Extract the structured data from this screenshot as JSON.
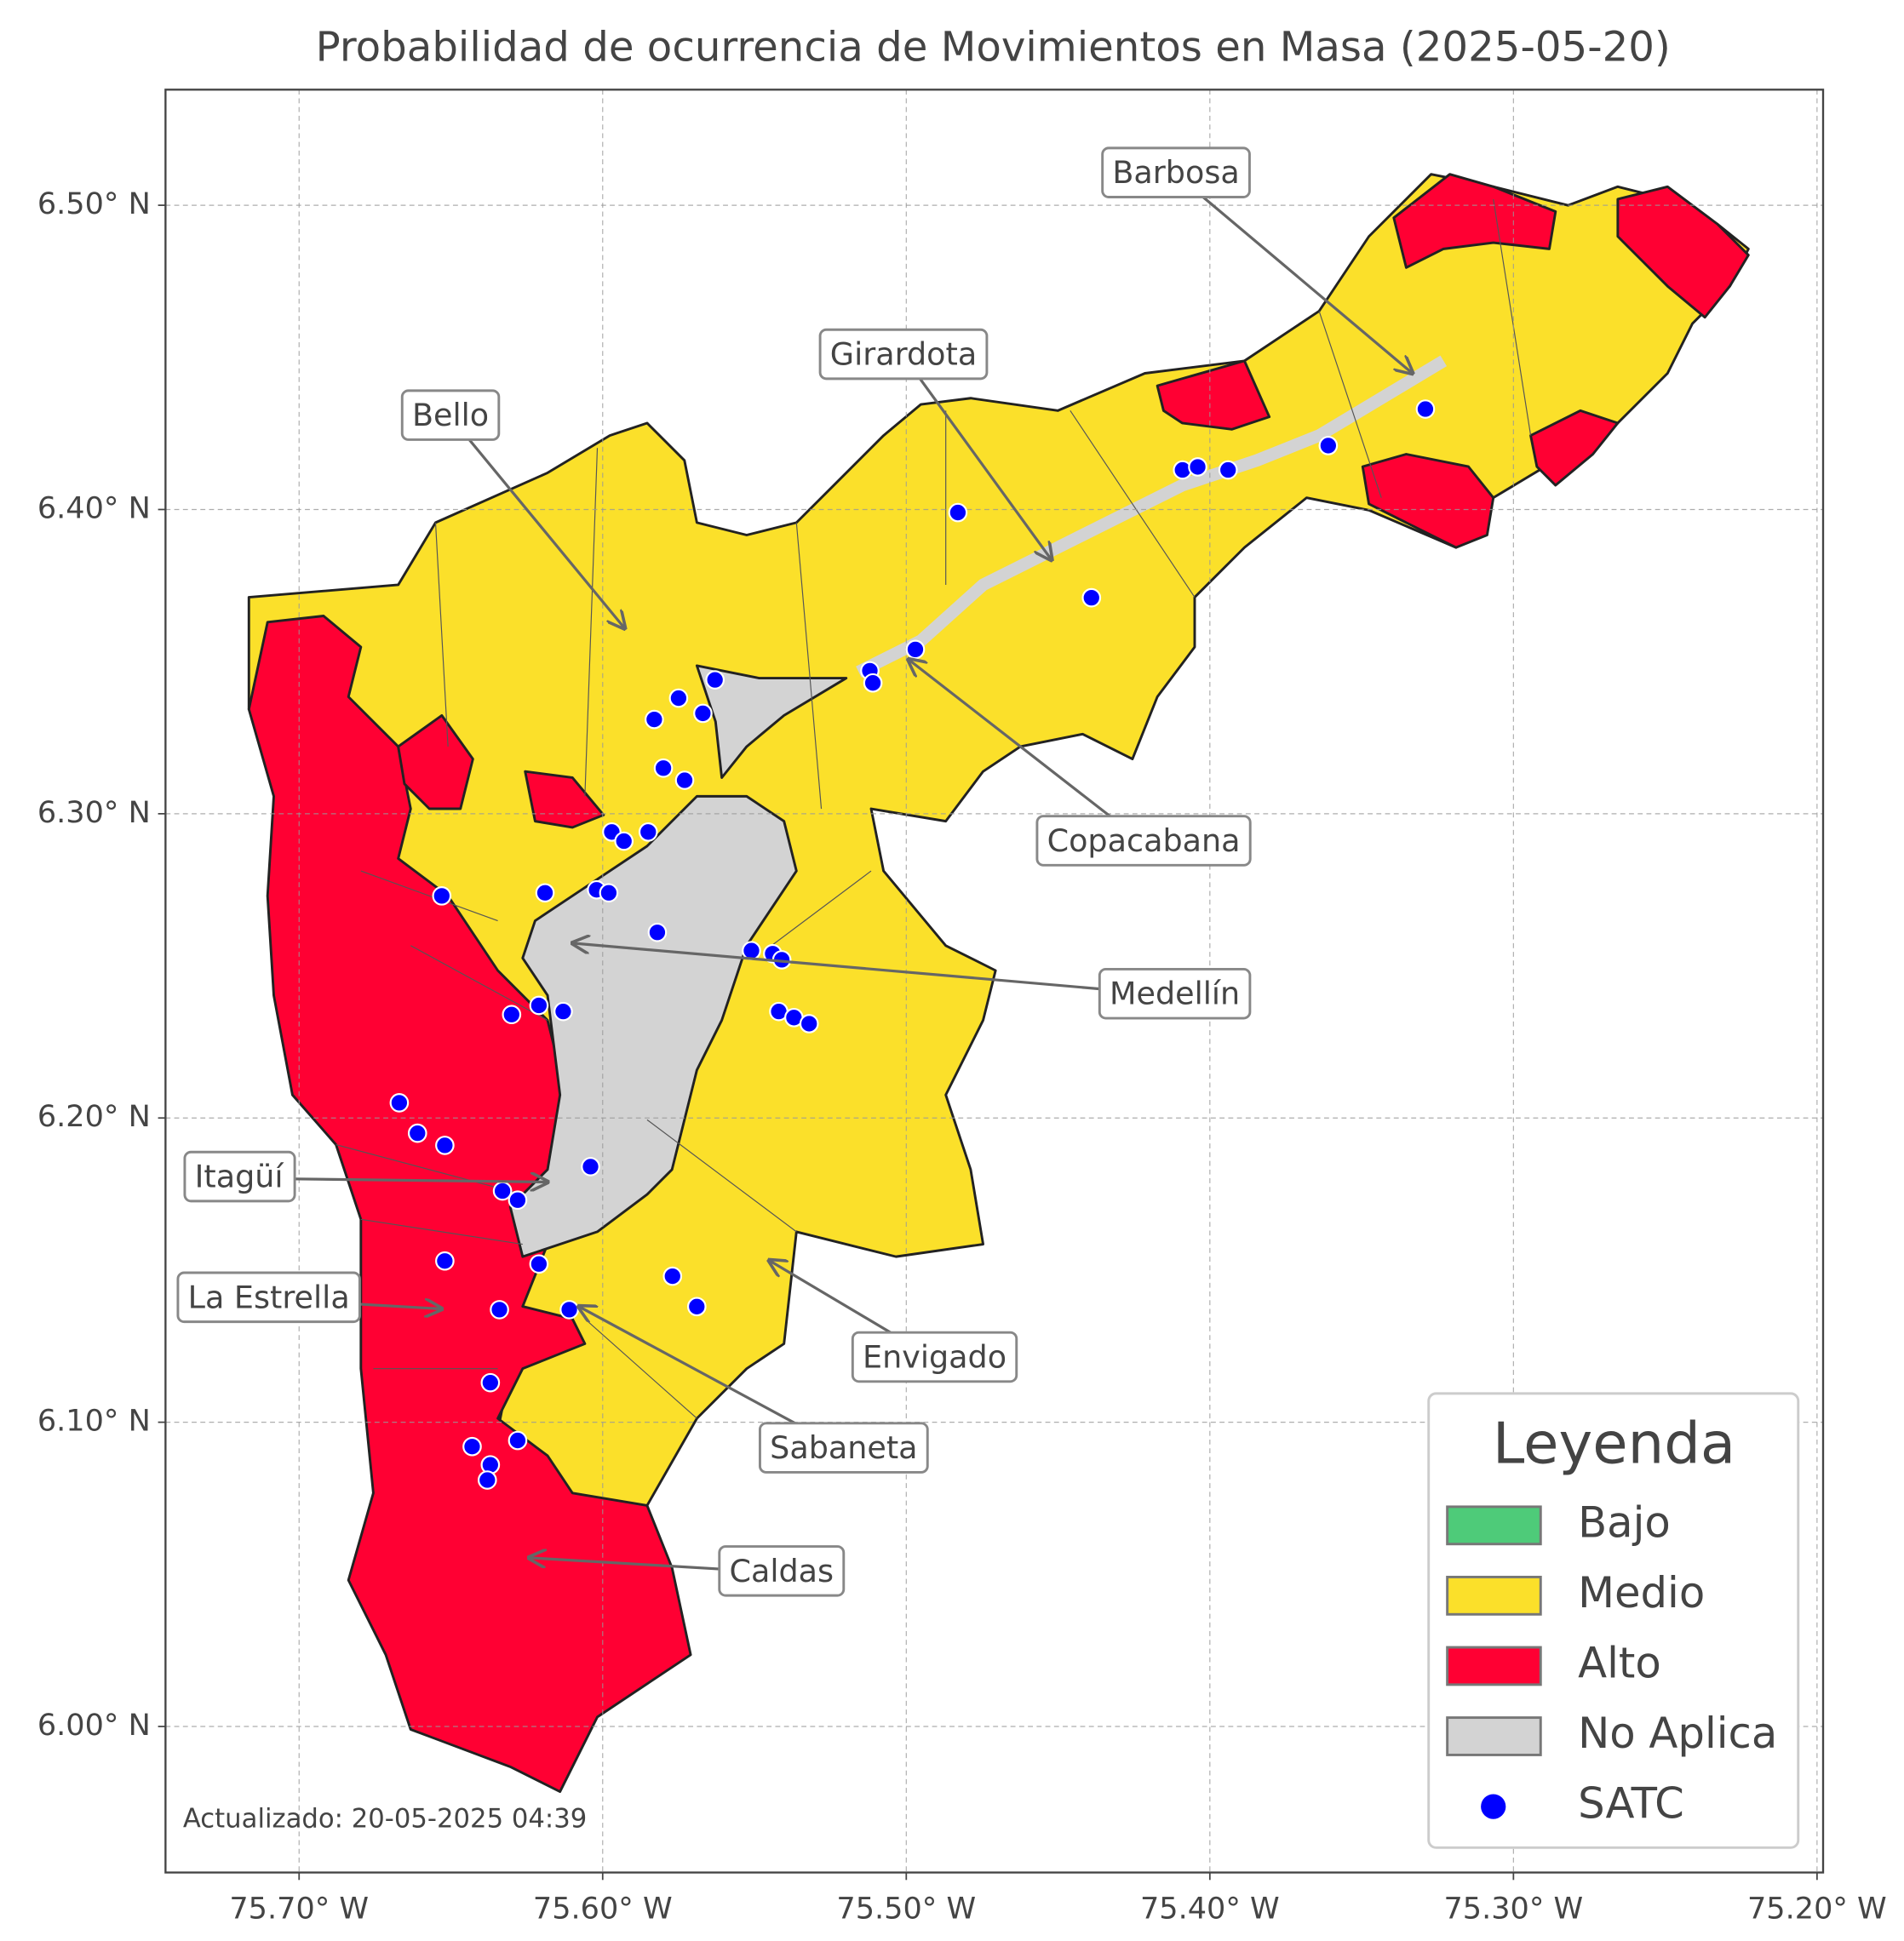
{
  "chart_data": {
    "type": "map",
    "title": "Probabilidad de ocurrencia de Movimientos en Masa (2025-05-20)",
    "xlim": [
      -75.744,
      -75.198
    ],
    "ylim": [
      5.952,
      6.538
    ],
    "xticks": [
      {
        "value": -75.7,
        "label": "75.70° W"
      },
      {
        "value": -75.6,
        "label": "75.60° W"
      },
      {
        "value": -75.5,
        "label": "75.50° W"
      },
      {
        "value": -75.4,
        "label": "75.40° W"
      },
      {
        "value": -75.3,
        "label": "75.30° W"
      },
      {
        "value": -75.2,
        "label": "75.20° W"
      }
    ],
    "yticks": [
      {
        "value": 6.0,
        "label": "6.00° N"
      },
      {
        "value": 6.1,
        "label": "6.10° N"
      },
      {
        "value": 6.2,
        "label": "6.20° N"
      },
      {
        "value": 6.3,
        "label": "6.30° N"
      },
      {
        "value": 6.4,
        "label": "6.40° N"
      },
      {
        "value": 6.5,
        "label": "6.50° N"
      }
    ],
    "grid": true,
    "legend": {
      "title": "Leyenda",
      "corner": "lower right",
      "entries": [
        {
          "name": "Bajo",
          "color": "#4ecb79"
        },
        {
          "name": "Medio",
          "color": "#fbe02a"
        },
        {
          "name": "Alto",
          "color": "#ff0033"
        },
        {
          "name": "No Aplica",
          "color": "#d3d3d3"
        }
      ]
    },
    "series": [
      {
        "name": "SATC",
        "color": "#0000ff",
        "x": [
          -75.653,
          -75.667,
          -75.661,
          -75.652,
          -75.633,
          -75.628,
          -75.652,
          -75.621,
          -75.634,
          -75.611,
          -75.637,
          -75.643,
          -75.628,
          -75.637,
          -75.638,
          -75.63,
          -75.621,
          -75.613,
          -75.619,
          -75.602,
          -75.598,
          -75.597,
          -75.593,
          -75.585,
          -75.582,
          -75.604,
          -75.58,
          -75.573,
          -75.583,
          -75.575,
          -75.567,
          -75.563,
          -75.551,
          -75.544,
          -75.541,
          -75.542,
          -75.537,
          -75.532,
          -75.577,
          -75.569,
          -75.512,
          -75.511,
          -75.497,
          -75.483,
          -75.439,
          -75.409,
          -75.404,
          -75.394,
          -75.361,
          -75.329
        ],
        "y": [
          6.273,
          6.205,
          6.195,
          6.191,
          6.176,
          6.173,
          6.153,
          6.152,
          6.137,
          6.137,
          6.113,
          6.092,
          6.094,
          6.086,
          6.081,
          6.234,
          6.237,
          6.235,
          6.274,
          6.275,
          6.274,
          6.294,
          6.291,
          6.294,
          6.261,
          6.184,
          6.315,
          6.311,
          6.331,
          6.338,
          6.333,
          6.344,
          6.255,
          6.254,
          6.252,
          6.235,
          6.233,
          6.231,
          6.148,
          6.138,
          6.347,
          6.343,
          6.354,
          6.399,
          6.371,
          6.413,
          6.414,
          6.413,
          6.421,
          6.433
        ]
      }
    ],
    "annotations": [
      "Barbosa",
      "Girardota",
      "Bello",
      "Copacabana",
      "Medellín",
      "Itagüí",
      "La Estrella",
      "Envigado",
      "Sabaneta",
      "Caldas"
    ],
    "footnote": "Actualizado: 20-05-2025 04:39"
  }
}
